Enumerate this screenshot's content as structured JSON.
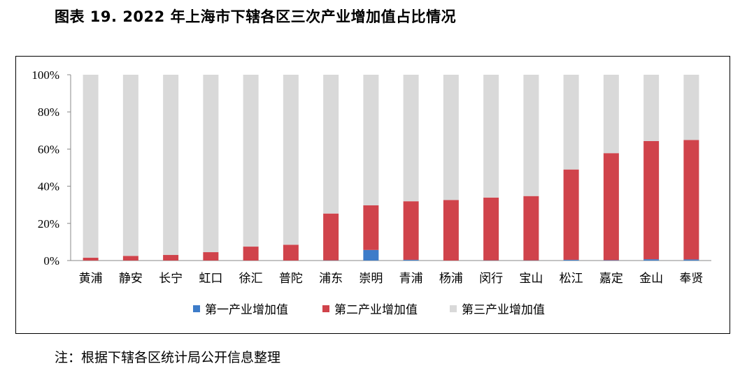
{
  "title": "图表 19.  2022 年上海市下辖各区三次产业增加值占比情况",
  "note": "注：根据下辖各区统计局公开信息整理",
  "chart_data": {
    "type": "bar",
    "stacked": true,
    "categories": [
      "黄浦",
      "静安",
      "长宁",
      "虹口",
      "徐汇",
      "普陀",
      "浦东",
      "崇明",
      "青浦",
      "杨浦",
      "闵行",
      "宝山",
      "松江",
      "嘉定",
      "金山",
      "奉贤"
    ],
    "series": [
      {
        "name": "第一产业增加值",
        "color": "#3d7cc9",
        "values": [
          0,
          0,
          0,
          0,
          0,
          0,
          0.1,
          5.7,
          0.4,
          0,
          0.1,
          0.1,
          0.4,
          0.2,
          0.7,
          0.6
        ]
      },
      {
        "name": "第二产业增加值",
        "color": "#d0434b",
        "values": [
          1.5,
          2.5,
          3.0,
          4.5,
          7.5,
          8.5,
          25.2,
          24.0,
          31.5,
          32.6,
          33.8,
          34.6,
          48.6,
          57.6,
          63.6,
          64.3
        ]
      },
      {
        "name": "第三产业增加值",
        "color": "#d9d9d9",
        "values": [
          98.5,
          97.5,
          97.0,
          95.5,
          92.5,
          91.5,
          74.7,
          70.3,
          68.1,
          67.4,
          66.1,
          65.3,
          51.0,
          42.2,
          35.7,
          35.1
        ]
      }
    ],
    "y_ticks": [
      "0%",
      "20%",
      "40%",
      "60%",
      "80%",
      "100%"
    ],
    "ylim": [
      0,
      100
    ],
    "grid": false,
    "legend_position": "bottom"
  }
}
